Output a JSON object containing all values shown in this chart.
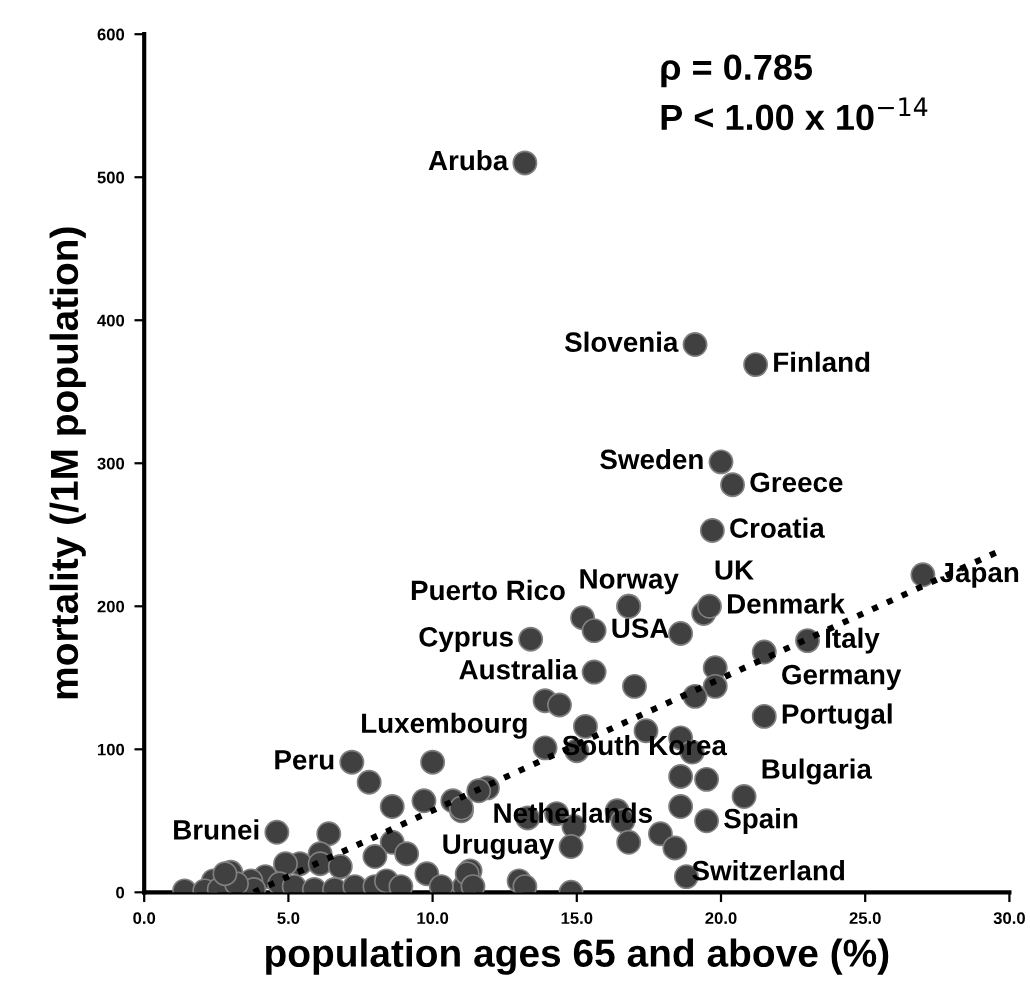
{
  "chart_data": {
    "type": "scatter",
    "xlabel": "population ages 65 and above (%)",
    "ylabel": "mortality (/1M population)",
    "xlim": [
      0,
      30
    ],
    "ylim": [
      0,
      600
    ],
    "xticks": [
      {
        "value": 0,
        "label": "0.0"
      },
      {
        "value": 5,
        "label": "5.0"
      },
      {
        "value": 10,
        "label": "10.0"
      },
      {
        "value": 15,
        "label": "15.0"
      },
      {
        "value": 20,
        "label": "20.0"
      },
      {
        "value": 25,
        "label": "25.0"
      },
      {
        "value": 30,
        "label": "30.0"
      }
    ],
    "yticks": [
      0,
      100,
      200,
      300,
      400,
      500,
      600
    ],
    "grid": false,
    "marker": "circle",
    "series": [
      {
        "color": "#404040",
        "x": [
          13.2,
          19.1,
          21.2,
          20.0,
          20.4,
          19.7,
          27.0,
          16.8,
          19.4,
          19.6,
          15.2,
          15.6,
          16.8,
          13.4,
          18.6,
          21.5,
          23.0,
          15.6,
          17.0,
          19.8,
          19.8,
          19.1,
          13.9,
          14.4,
          21.5,
          15.3,
          17.4,
          13.9,
          15.0,
          18.6,
          19.0,
          11.9,
          11.0,
          18.6,
          19.5,
          20.8,
          18.6,
          19.5,
          13.3,
          14.3,
          14.9,
          16.4,
          16.6,
          16.8,
          17.9,
          18.4,
          18.8,
          14.8,
          14.8,
          13.0,
          13.2,
          11.3,
          11.1,
          7.2,
          10.0,
          7.8,
          4.6,
          8.6,
          9.7,
          10.7,
          11.0,
          11.6,
          6.4,
          8.6,
          9.1,
          8.0,
          6.1,
          5.4,
          4.9,
          4.2,
          3.7,
          3.0,
          2.4,
          1.4,
          2.1,
          2.6,
          3.8,
          4.7,
          5.2,
          5.9,
          6.6,
          7.3,
          8.0,
          8.4,
          8.9,
          9.8,
          10.3,
          11.2,
          11.4,
          6.1,
          6.8,
          3.2,
          2.8
        ],
        "values": [
          510,
          383,
          369,
          301,
          285,
          253,
          222,
          200,
          195,
          200,
          192,
          183,
          200,
          177,
          181,
          168,
          176,
          154,
          144,
          157,
          144,
          137,
          134,
          131,
          123,
          116,
          113,
          101,
          99,
          108,
          98,
          73,
          57,
          81,
          79,
          67,
          60,
          50,
          52,
          55,
          46,
          57,
          50,
          35,
          41,
          31,
          11,
          32,
          0,
          8,
          4,
          15,
          4,
          91,
          91,
          77,
          42,
          60,
          64,
          64,
          59,
          71,
          41,
          35,
          27,
          25,
          27,
          20,
          20,
          11,
          8,
          14,
          8,
          1,
          1,
          2,
          2,
          6,
          4,
          2,
          2,
          4,
          4,
          8,
          4,
          13,
          4,
          13,
          4,
          20,
          18,
          6,
          13
        ]
      },
      {
        "type": "line",
        "color": "#000000",
        "line_style": "dotted",
        "marker": "none",
        "x": [
          3.8,
          29.7
        ],
        "values": [
          0,
          239
        ]
      }
    ],
    "annotations": [
      {
        "text": "Aruba",
        "x": 13.2,
        "y": 510
      },
      {
        "text": "Slovenia",
        "x": 19.1,
        "y": 383
      },
      {
        "text": "Finland",
        "x": 21.2,
        "y": 369
      },
      {
        "text": "Sweden",
        "x": 20.0,
        "y": 301
      },
      {
        "text": "Greece",
        "x": 20.4,
        "y": 285
      },
      {
        "text": "Croatia",
        "x": 19.7,
        "y": 253
      },
      {
        "text": "Japan",
        "x": 27.0,
        "y": 222
      },
      {
        "text": "Norway",
        "x": 16.8,
        "y": 200
      },
      {
        "text": "Denmark",
        "x": 19.6,
        "y": 200
      },
      {
        "text": "Puerto Rico",
        "x": 15.2,
        "y": 192
      },
      {
        "text": "Cyprus",
        "x": 13.4,
        "y": 177
      },
      {
        "text": "USA",
        "x": 15.6,
        "y": 183
      },
      {
        "text": "UK",
        "x": 18.6,
        "y": 181
      },
      {
        "text": "Italy",
        "x": 23.0,
        "y": 176
      },
      {
        "text": "Australia",
        "x": 15.6,
        "y": 154
      },
      {
        "text": "Germany",
        "x": 21.5,
        "y": 168
      },
      {
        "text": "Luxembourg",
        "x": 13.9,
        "y": 134
      },
      {
        "text": "South Korea",
        "x": 13.9,
        "y": 101
      },
      {
        "text": "Portugal",
        "x": 21.5,
        "y": 123
      },
      {
        "text": "Peru",
        "x": 7.2,
        "y": 91
      },
      {
        "text": "Spain",
        "x": 19.5,
        "y": 79
      },
      {
        "text": "Bulgaria",
        "x": 20.8,
        "y": 67
      },
      {
        "text": "Brunei",
        "x": 4.6,
        "y": 42
      },
      {
        "text": "Uruguay",
        "x": 14.8,
        "y": 32
      },
      {
        "text": "Switzerland",
        "x": 18.4,
        "y": 31
      },
      {
        "text": "Netherlands",
        "x": 18.8,
        "y": 11
      },
      "ρ = 0.785",
      "P < 1.00 x 10$^{−14}$"
    ]
  }
}
